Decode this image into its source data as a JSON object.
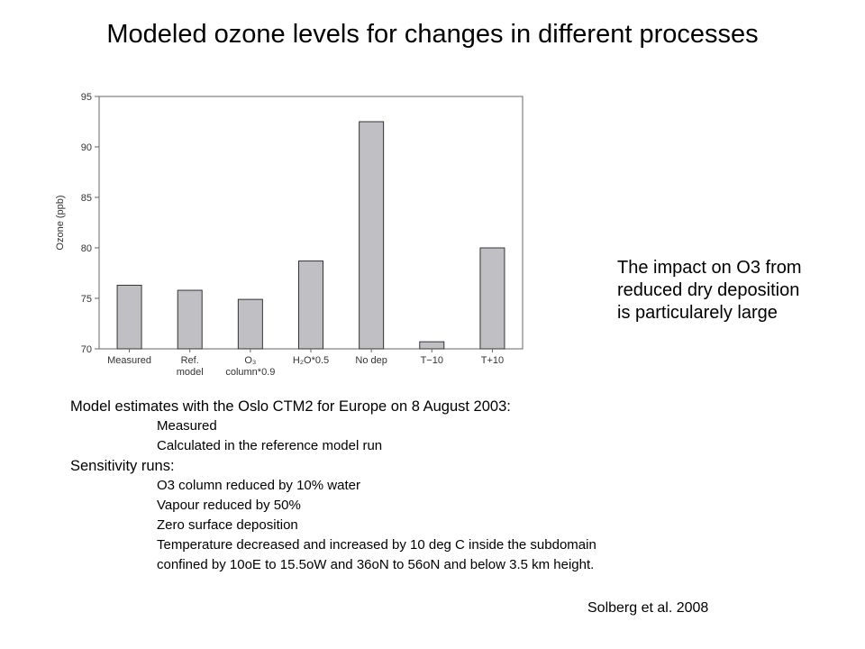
{
  "slide": {
    "title": "Modeled ozone levels for changes in different processes",
    "side_note": [
      "The impact on O3 from",
      "reduced dry deposition",
      "is particularely large"
    ],
    "notes": {
      "heading": "Model estimates with the Oslo CTM2 for Europe on 8 August 2003:",
      "group1": [
        "Measured",
        "Calculated in the reference model run"
      ],
      "subheading": "Sensitivity runs:",
      "group2": [
        "O3 column reduced by 10% water",
        "Vapour reduced by 50%",
        "Zero surface deposition",
        "Temperature decreased and increased by 10 deg C inside the subdomain",
        "confined by 10oE to 15.5oW and 36oN to 56oN and below 3.5 km height."
      ]
    },
    "citation": "Solberg et al. 2008"
  },
  "chart_data": {
    "type": "bar",
    "categories": [
      "Measured",
      "Ref.\nmodel",
      "O₃\ncolumn*0.9",
      "H₂O*0.5",
      "No dep",
      "T−10",
      "T+10"
    ],
    "values": [
      76.3,
      75.8,
      74.9,
      78.7,
      92.5,
      70.7,
      80.0
    ],
    "ylabel": "Ozone (ppb)",
    "ylim": [
      70,
      95
    ],
    "yticks": [
      70,
      75,
      80,
      85,
      90,
      95
    ],
    "grid": false,
    "legend": "none",
    "colors": {
      "bar_fill": "#c0c0c4",
      "bar_stroke": "#333333",
      "axis": "#666666"
    }
  }
}
